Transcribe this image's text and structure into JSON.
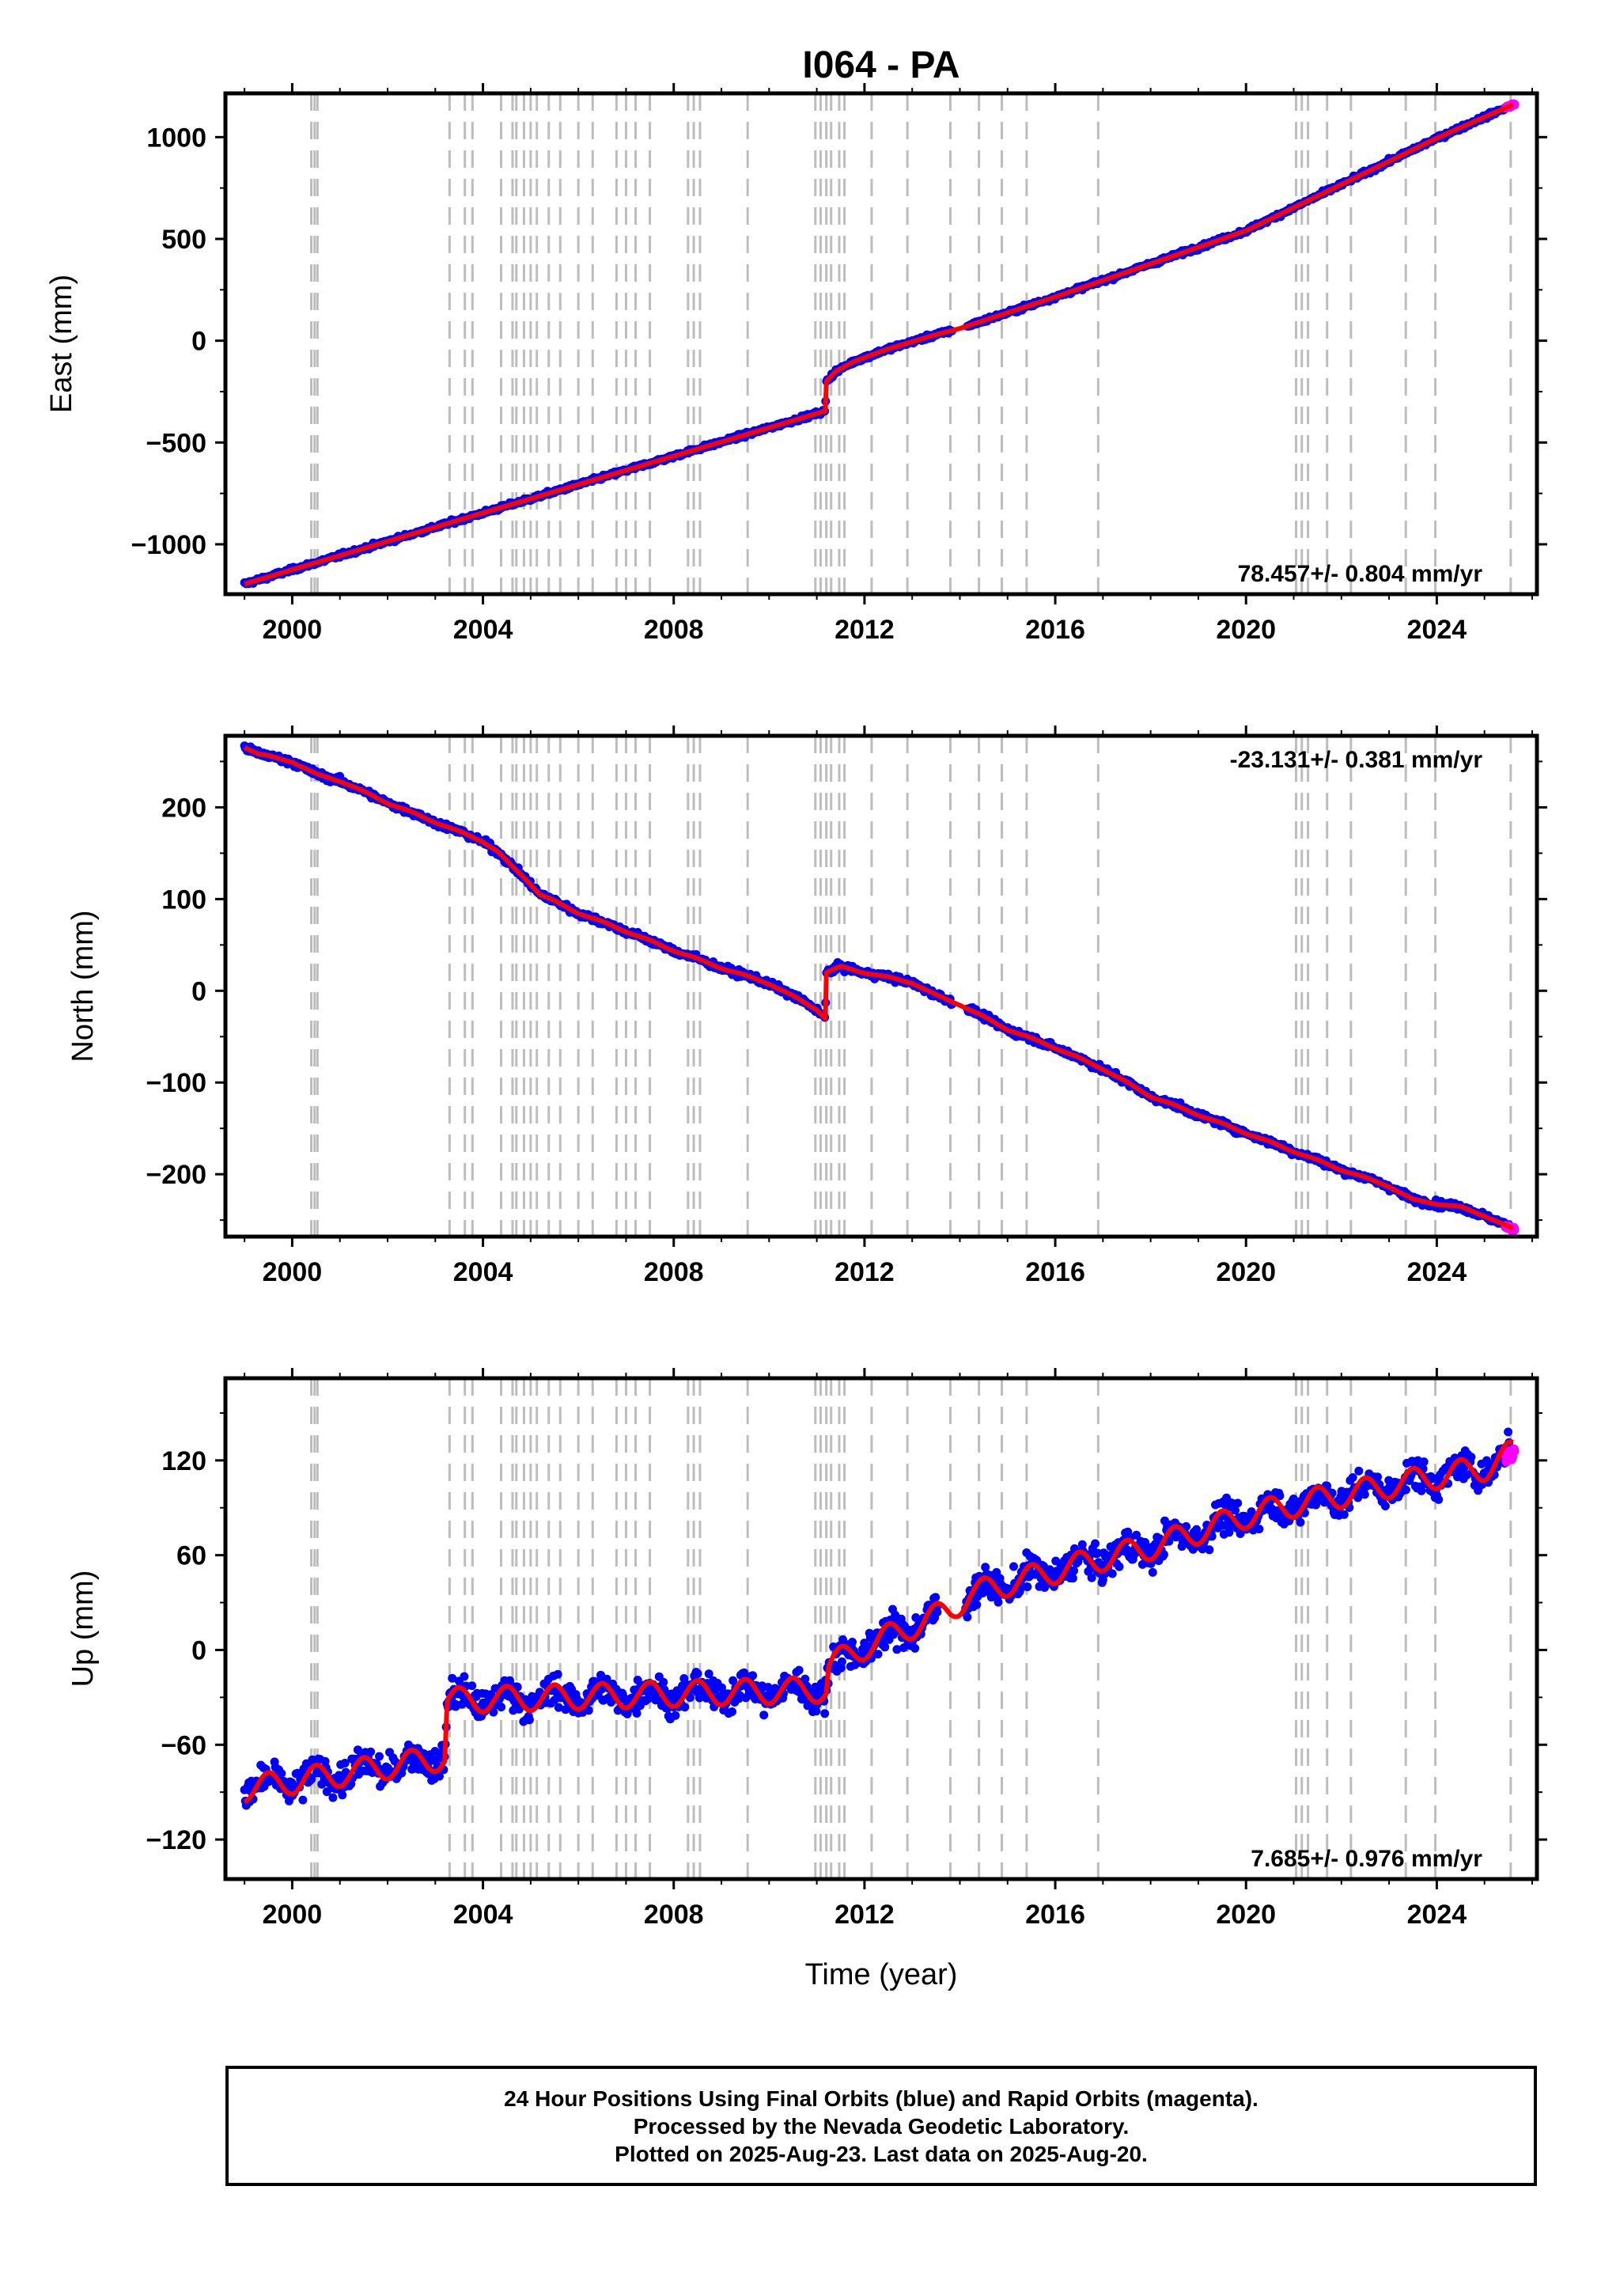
{
  "chart_data": {
    "type": "scatter",
    "title": "I064 - PA",
    "xlabel": "Time (year)",
    "xlim": [
      1998.6,
      2026.1
    ],
    "x_ticks": [
      2000,
      2004,
      2008,
      2012,
      2016,
      2020,
      2024
    ],
    "x_tick_labels": [
      "2000",
      "2004",
      "2008",
      "2012",
      "2016",
      "2020",
      "2024"
    ],
    "equipment_change_lines": [
      2000.4,
      2000.47,
      2000.53,
      2003.3,
      2003.62,
      2003.78,
      2004.38,
      2004.62,
      2004.7,
      2004.86,
      2005.0,
      2005.13,
      2005.38,
      2005.62,
      2006.0,
      2006.3,
      2006.8,
      2007.0,
      2007.2,
      2007.5,
      2008.3,
      2008.42,
      2008.55,
      2009.55,
      2010.97,
      2011.08,
      2011.2,
      2011.3,
      2011.47,
      2011.58,
      2012.15,
      2012.9,
      2013.8,
      2014.4,
      2014.88,
      2015.4,
      2016.9,
      2021.05,
      2021.17,
      2021.3,
      2021.7,
      2022.2,
      2023.35,
      2023.97,
      2025.55
    ],
    "legend": "",
    "grid": false,
    "series": [
      {
        "name": "Final Orbits (blue)",
        "color": "#0000ff"
      },
      {
        "name": "Rapid Orbits (magenta)",
        "color": "#ff00ff"
      },
      {
        "color": "#ff0000"
      }
    ],
    "panels": [
      {
        "component": "east",
        "ylabel": "East (mm)",
        "ylim": [
          -1245,
          1215
        ],
        "y_ticks": [
          1000,
          500,
          0,
          -500,
          -1000
        ],
        "y_tick_labels": [
          "1000",
          "500",
          "0",
          "−500",
          "−1000"
        ],
        "rate": "78.457+/- 0.804 mm/yr",
        "noise_mm": 7,
        "seasonal_mm": 0,
        "model": {
          "x": [
            1999.0,
            2011.18,
            2011.2,
            2011.4,
            2011.8,
            2012.5,
            2013.5,
            2014.0,
            2016.0,
            2020.0,
            2024.0,
            2025.6
          ],
          "y": [
            -1195,
            -345,
            -200,
            -150,
            -100,
            -40,
            30,
            60,
            215,
            540,
            995,
            1160
          ]
        },
        "gaps": [
          [
            2013.85,
            2014.15
          ]
        ]
      },
      {
        "component": "north",
        "ylabel": "North (mm)",
        "ylim": [
          -268,
          278
        ],
        "y_ticks": [
          200,
          100,
          0,
          -100,
          -200
        ],
        "y_tick_labels": [
          "200",
          "100",
          "0",
          "−100",
          "−200"
        ],
        "rate": "-23.131+/- 0.381 mm/yr",
        "noise_mm": 2.5,
        "seasonal_mm": 0.5,
        "model": {
          "x": [
            1999.0,
            1999.3,
            2000.0,
            2000.5,
            2001.0,
            2002.0,
            2003.0,
            2004.0,
            2004.3,
            2004.6,
            2004.9,
            2005.2,
            2006.0,
            2007.0,
            2008.0,
            2009.0,
            2010.0,
            2011.0,
            2011.18,
            2011.2,
            2011.5,
            2012.0,
            2013.0,
            2013.5,
            2014.0,
            2015.0,
            2016.0,
            2017.0,
            2018.0,
            2019.0,
            2020.0,
            2021.0,
            2022.0,
            2023.0,
            2023.5,
            2024.0,
            2024.5,
            2025.0,
            2025.6
          ],
          "y": [
            266,
            258,
            250,
            236,
            229,
            205,
            184,
            163,
            152,
            136,
            122,
            105,
            85,
            65,
            44,
            25,
            8,
            -20,
            -30,
            20,
            26,
            20,
            9,
            -5,
            -15,
            -42,
            -62,
            -85,
            -115,
            -135,
            -155,
            -175,
            -195,
            -213,
            -228,
            -232,
            -236,
            -245,
            -260
          ]
        },
        "gaps": [
          [
            2013.85,
            2014.15
          ]
        ]
      },
      {
        "component": "up",
        "ylabel": "Up (mm)",
        "ylim": [
          -145,
          172
        ],
        "y_ticks": [
          120,
          60,
          0,
          -60,
          -120
        ],
        "y_tick_labels": [
          "120",
          "60",
          "0",
          "−60",
          "−120"
        ],
        "rate": "7.685+/- 0.976 mm/yr",
        "noise_mm": 7,
        "seasonal_mm": 5,
        "model": {
          "x": [
            1999.0,
            2003.2,
            2003.25,
            2011.2,
            2011.25,
            2012.0,
            2013.0,
            2013.8,
            2014.2,
            2015.0,
            2016.0,
            2017.0,
            2018.0,
            2019.0,
            2020.0,
            2021.0,
            2022.0,
            2023.0,
            2024.0,
            2025.0,
            2025.6
          ],
          "y": [
            -88,
            -68,
            -32,
            -25,
            -10,
            2,
            15,
            25,
            35,
            42,
            50,
            58,
            65,
            75,
            85,
            92,
            98,
            104,
            110,
            115,
            125
          ]
        },
        "gaps": [
          [
            2013.55,
            2014.1
          ]
        ]
      }
    ]
  },
  "notes": [
    "24 Hour Positions Using Final Orbits (blue) and Rapid Orbits (magenta).",
    "Processed by the Nevada Geodetic Laboratory.",
    "Plotted on 2025-Aug-23. Last data on 2025-Aug-20."
  ]
}
